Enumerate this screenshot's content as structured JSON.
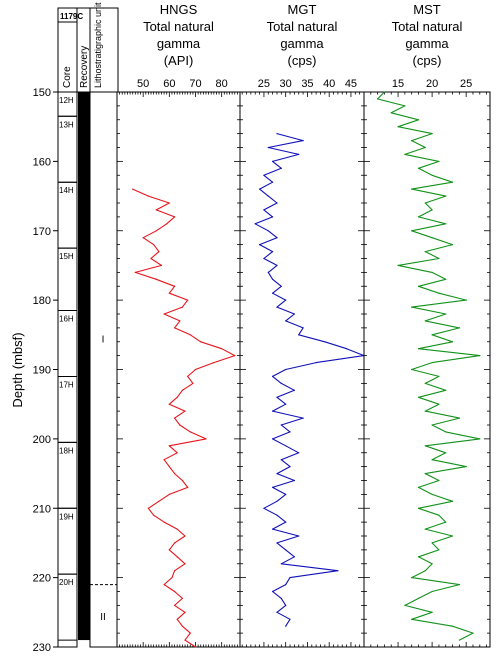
{
  "site_label": "1179C",
  "column_headers": {
    "core": "Core",
    "recovery": "Recovery",
    "litho": "Lithostratigraphic unit"
  },
  "depth_axis": {
    "label": "Depth (mbsf)",
    "ticks": [
      150,
      160,
      170,
      180,
      190,
      200,
      210,
      220,
      230
    ],
    "ylim": [
      150,
      230
    ]
  },
  "cores": [
    {
      "label": "12H",
      "top": 150.0,
      "bottom": 153.5
    },
    {
      "label": "13H",
      "top": 153.5,
      "bottom": 163.0
    },
    {
      "label": "14H",
      "top": 163.0,
      "bottom": 172.5
    },
    {
      "label": "15H",
      "top": 172.5,
      "bottom": 181.5
    },
    {
      "label": "16H",
      "top": 181.5,
      "bottom": 191.0
    },
    {
      "label": "17H",
      "top": 191.0,
      "bottom": 200.5
    },
    {
      "label": "18H",
      "top": 200.5,
      "bottom": 210.0
    },
    {
      "label": "19H",
      "top": 210.0,
      "bottom": 219.5
    },
    {
      "label": "20H",
      "top": 219.5,
      "bottom": 229.0
    }
  ],
  "litho_units": [
    {
      "label": "I",
      "top": 150,
      "bottom": 221
    },
    {
      "label": "II",
      "top": 221,
      "bottom": 230
    }
  ],
  "litho_boundary_depth": 221,
  "chart_data": [
    {
      "type": "line",
      "tool": "HNGS",
      "title": [
        "HNGS",
        "Total natural",
        "gamma",
        "(API)"
      ],
      "x_ticks": [
        50,
        60,
        70,
        80
      ],
      "xlim": [
        40,
        87
      ],
      "color": "#e8151b",
      "y": [
        164,
        165,
        166,
        167,
        168,
        169,
        170,
        171,
        172,
        173,
        174,
        175,
        176,
        177,
        178,
        179,
        180,
        181,
        182,
        183,
        184,
        185,
        186,
        187,
        188,
        189,
        190,
        191,
        192,
        193,
        194,
        195,
        196,
        197,
        198,
        199,
        200,
        201,
        202,
        203,
        204,
        205,
        206,
        207,
        208,
        209,
        210,
        211,
        212,
        213,
        214,
        215,
        216,
        217,
        218,
        219,
        220,
        221,
        222,
        223,
        224,
        225,
        226,
        227,
        228,
        229,
        230
      ],
      "x": [
        46,
        52,
        60,
        55,
        62,
        59,
        55,
        50,
        54,
        56,
        53,
        57,
        47,
        55,
        62,
        60,
        67,
        65,
        58,
        64,
        62,
        68,
        72,
        80,
        85,
        77,
        70,
        67,
        69,
        65,
        63,
        60,
        66,
        62,
        64,
        68,
        74,
        60,
        63,
        58,
        60,
        62,
        65,
        67,
        60,
        56,
        52,
        54,
        58,
        63,
        66,
        62,
        60,
        63,
        66,
        62,
        61,
        58,
        62,
        65,
        62,
        66,
        63,
        65,
        68,
        66,
        70
      ]
    },
    {
      "type": "line",
      "tool": "MGT",
      "title": [
        "MGT",
        "Total natural",
        "gamma",
        "(cps)"
      ],
      "x_ticks": [
        25,
        30,
        35,
        40,
        45
      ],
      "xlim": [
        19.5,
        48
      ],
      "color": "#1010b8",
      "y": [
        156,
        157,
        158,
        159,
        160,
        161,
        162,
        163,
        164,
        165,
        166,
        167,
        168,
        169,
        170,
        171,
        172,
        173,
        174,
        175,
        176,
        177,
        178,
        179,
        180,
        181,
        182,
        183,
        184,
        185,
        186,
        187,
        188,
        189,
        190,
        191,
        192,
        193,
        194,
        195,
        196,
        197,
        198,
        199,
        200,
        201,
        202,
        203,
        204,
        205,
        206,
        207,
        208,
        209,
        210,
        211,
        212,
        213,
        214,
        215,
        216,
        217,
        218,
        219,
        220,
        221,
        222,
        223,
        224,
        225,
        226,
        227
      ],
      "x": [
        28,
        34,
        26,
        33,
        27,
        29,
        25,
        27,
        24,
        26,
        28,
        25,
        27,
        23,
        26,
        28,
        24,
        27,
        25,
        28,
        26,
        27,
        29,
        27,
        30,
        28,
        32,
        30,
        34,
        33,
        39,
        44,
        48,
        37,
        30,
        27,
        29,
        32,
        28,
        30,
        27,
        34,
        29,
        31,
        27,
        30,
        33,
        29,
        31,
        28,
        32,
        27,
        30,
        28,
        25,
        28,
        30,
        27,
        33,
        28,
        30,
        32,
        29,
        42,
        31,
        30,
        27,
        29,
        30,
        28,
        31,
        30
      ]
    },
    {
      "type": "line",
      "tool": "MST",
      "title": [
        "MST",
        "Total natural",
        "gamma",
        "(cps)"
      ],
      "x_ticks": [
        15,
        20,
        25
      ],
      "xlim": [
        10,
        28.5
      ],
      "color": "#12921a",
      "y": [
        150,
        151,
        152,
        153,
        154,
        155,
        156,
        157,
        158,
        159,
        160,
        161,
        162,
        163,
        164,
        165,
        166,
        167,
        168,
        169,
        170,
        171,
        172,
        173,
        174,
        175,
        176,
        177,
        178,
        179,
        180,
        181,
        182,
        183,
        184,
        185,
        186,
        187,
        188,
        189,
        190,
        191,
        192,
        193,
        194,
        195,
        196,
        197,
        198,
        199,
        200,
        201,
        202,
        203,
        204,
        205,
        206,
        207,
        208,
        209,
        210,
        211,
        212,
        213,
        214,
        215,
        216,
        217,
        218,
        219,
        220,
        221,
        222,
        223,
        224,
        225,
        226,
        227,
        228,
        229
      ],
      "x": [
        13,
        12,
        16,
        14,
        18,
        15,
        20,
        17,
        19,
        16,
        21,
        18,
        20,
        23,
        17,
        22,
        19,
        20,
        18,
        22,
        17,
        20,
        23,
        19,
        21,
        15,
        20,
        22,
        18,
        21,
        25,
        17,
        22,
        19,
        24,
        20,
        23,
        18,
        27,
        20,
        17,
        21,
        19,
        22,
        18,
        21,
        19,
        24,
        20,
        22,
        27,
        19,
        22,
        20,
        25,
        19,
        21,
        18,
        20,
        23,
        18,
        21,
        22,
        19,
        23,
        20,
        21,
        18,
        20,
        19,
        17,
        24,
        20,
        18,
        16,
        20,
        17,
        23,
        26,
        24
      ]
    }
  ]
}
